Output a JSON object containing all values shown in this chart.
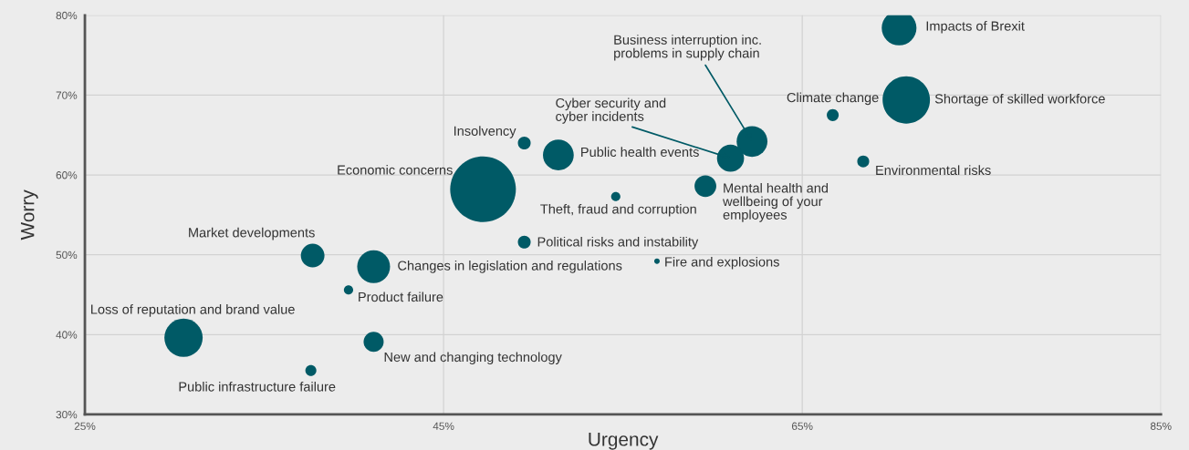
{
  "chart_data": {
    "type": "bubble",
    "xlabel": "Urgency",
    "ylabel": "Worry",
    "xlim": [
      25,
      85
    ],
    "ylim": [
      30,
      80
    ],
    "xticks": [
      {
        "value": 25,
        "label": "25%"
      },
      {
        "value": 45,
        "label": "45%"
      },
      {
        "value": 65,
        "label": "65%"
      },
      {
        "value": 85,
        "label": "85%"
      }
    ],
    "yticks": [
      {
        "value": 30,
        "label": "30%"
      },
      {
        "value": 40,
        "label": "40%"
      },
      {
        "value": 50,
        "label": "50%"
      },
      {
        "value": 60,
        "label": "60%"
      },
      {
        "value": 70,
        "label": "70%"
      },
      {
        "value": 80,
        "label": "80%"
      }
    ],
    "grid": true,
    "series": [
      {
        "color": "#005a66",
        "x": [
          70.4,
          70.8,
          66.7,
          68.4,
          62.2,
          61.0,
          59.6,
          56.9,
          54.6,
          49.5,
          49.5,
          51.4,
          47.2,
          41.1,
          37.7,
          39.7,
          41.1,
          30.5,
          37.6
        ],
        "values": [
          78.4,
          69.4,
          67.5,
          61.7,
          64.2,
          62.1,
          58.6,
          49.2,
          57.3,
          51.6,
          64.0,
          62.5,
          58.2,
          48.5,
          49.9,
          45.6,
          39.1,
          39.6,
          35.5
        ],
        "sizes": [
          0.28,
          0.52,
          0.033,
          0.033,
          0.22,
          0.17,
          0.11,
          0.007,
          0.02,
          0.038,
          0.038,
          0.22,
          1,
          0.25,
          0.13,
          0.02,
          0.093,
          0.34,
          0.028
        ]
      }
    ],
    "annotations": [
      {
        "text": "Impacts of Brexit",
        "x": 70.4,
        "y": 78.4
      },
      {
        "text": "Shortage of skilled workforce",
        "x": 70.8,
        "y": 69.4
      },
      {
        "text": "Climate change",
        "x": 66.7,
        "y": 67.5
      },
      {
        "text": "Environmental risks",
        "x": 68.4,
        "y": 61.7
      },
      {
        "text": "Business interruption inc.\nproblems in supply chain",
        "x": 62.2,
        "y": 64.2
      },
      {
        "text": "Cyber security and\ncyber incidents",
        "x": 61.0,
        "y": 62.1
      },
      {
        "text": "Mental health and\nwellbeing of your\nemployees",
        "x": 59.6,
        "y": 58.6
      },
      {
        "text": "Fire and explosions",
        "x": 56.9,
        "y": 49.2
      },
      {
        "text": "Theft, fraud and corruption",
        "x": 54.6,
        "y": 57.3
      },
      {
        "text": "Political risks and instability",
        "x": 49.5,
        "y": 51.6
      },
      {
        "text": "Insolvency",
        "x": 49.5,
        "y": 64.0
      },
      {
        "text": "Public health events",
        "x": 51.4,
        "y": 62.5
      },
      {
        "text": "Economic concerns",
        "x": 47.2,
        "y": 58.2
      },
      {
        "text": "Changes in legislation and regulations",
        "x": 41.1,
        "y": 48.5
      },
      {
        "text": "Market developments",
        "x": 37.7,
        "y": 49.9
      },
      {
        "text": "Product failure",
        "x": 39.7,
        "y": 45.6
      },
      {
        "text": "New and changing technology",
        "x": 41.1,
        "y": 39.1
      },
      {
        "text": "Loss of reputation and brand value",
        "x": 30.5,
        "y": 39.6
      },
      {
        "text": "Public infrastructure failure",
        "x": 37.6,
        "y": 35.5
      }
    ]
  }
}
